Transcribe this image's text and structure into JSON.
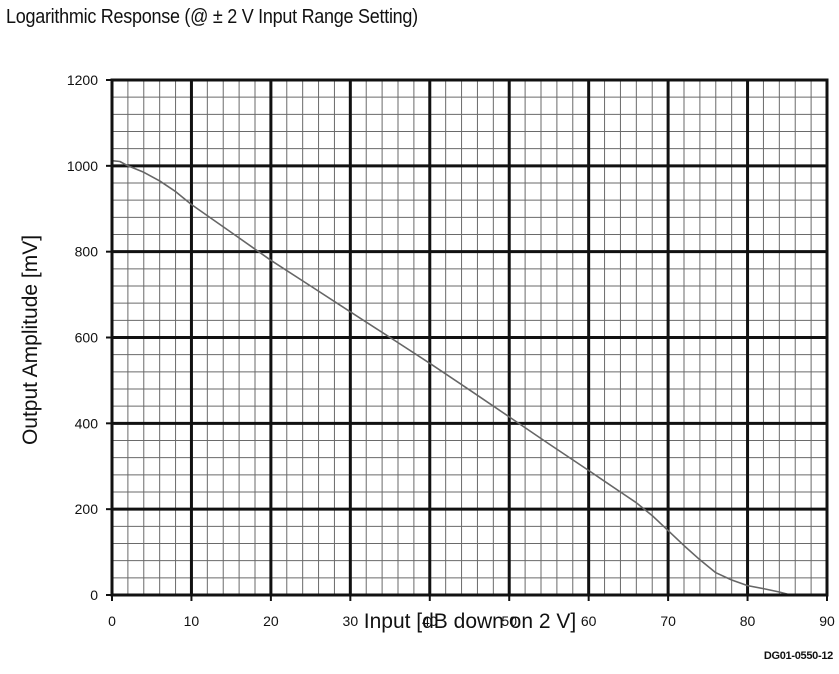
{
  "chart_data": {
    "type": "line",
    "title": "Logarithmic Response (@ ± 2 V Input Range Setting)",
    "xlabel": "Input [dB down on 2 V]",
    "ylabel": "Output Amplitude [mV]",
    "xlim": [
      0,
      90
    ],
    "ylim": [
      0,
      1200
    ],
    "x_ticks": [
      0,
      10,
      20,
      30,
      40,
      50,
      60,
      70,
      80,
      90
    ],
    "y_ticks": [
      0,
      200,
      400,
      600,
      800,
      1000,
      1200
    ],
    "x_minor_step": 2,
    "y_minor_step": 40,
    "grid": true,
    "legend": "none",
    "series": [
      {
        "x": [
          0,
          1,
          2,
          4,
          6,
          8,
          10,
          15,
          20,
          25,
          30,
          35,
          40,
          45,
          50,
          55,
          60,
          62,
          64,
          66,
          68,
          70,
          72,
          74,
          76,
          78,
          80,
          82,
          84,
          85
        ],
        "values": [
          1012,
          1010,
          1000,
          985,
          965,
          940,
          910,
          845,
          780,
          720,
          660,
          600,
          540,
          478,
          415,
          352,
          290,
          265,
          240,
          215,
          185,
          150,
          115,
          82,
          52,
          35,
          22,
          15,
          7,
          2
        ],
        "color": "#666666"
      }
    ]
  },
  "figure_code": "DG01-0550-12"
}
